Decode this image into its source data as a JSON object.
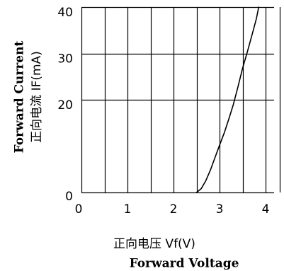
{
  "chart_data": {
    "type": "line",
    "xlabel_cn": "正向电压 Vf(V)",
    "xlabel_en": "Forward Voltage",
    "ylabel_en": "Forward Current",
    "ylabel_cn": "正向电流 IF(mA)",
    "xlim": [
      0,
      4.3
    ],
    "ylim": [
      0,
      40
    ],
    "x_ticks": [
      0,
      1,
      2,
      3,
      4
    ],
    "x_tick_labels": [
      "0",
      "1",
      "2",
      "3",
      "4"
    ],
    "y_ticks": [
      0,
      20,
      30,
      40
    ],
    "y_tick_labels": [
      "0",
      "20",
      "30",
      "40"
    ],
    "vertical_grid": [
      0,
      0.5,
      1,
      1.5,
      2,
      2.5,
      3,
      3.5,
      4,
      4.3
    ],
    "horizontal_grid": [
      0,
      20,
      30,
      40
    ],
    "grid": true,
    "series": [
      {
        "x": [
          2.5,
          2.6,
          2.7,
          2.8,
          2.9,
          3.0,
          3.1,
          3.2,
          3.3,
          3.4,
          3.5,
          3.6,
          3.7,
          3.8,
          3.85
        ],
        "y": [
          0,
          0.8,
          2.5,
          4.8,
          7.5,
          10.2,
          12.8,
          15.8,
          19.0,
          22.8,
          26.8,
          30.2,
          33.8,
          37.5,
          40.0
        ]
      }
    ]
  }
}
